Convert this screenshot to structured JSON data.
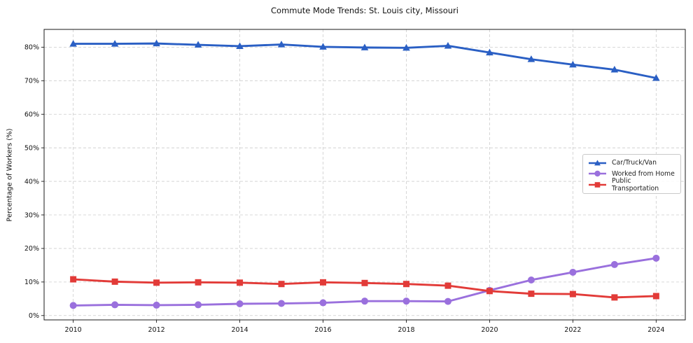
{
  "chart_data": {
    "type": "line",
    "title": "Commute Mode Trends: St. Louis city, Missouri",
    "xlabel": "",
    "ylabel": "Percentage of Workers (%)",
    "x": [
      2010,
      2011,
      2012,
      2013,
      2014,
      2015,
      2016,
      2017,
      2018,
      2019,
      2020,
      2021,
      2022,
      2023,
      2024
    ],
    "xticks": [
      2010,
      2012,
      2014,
      2016,
      2018,
      2020,
      2022,
      2024
    ],
    "yticks": [
      0,
      10,
      20,
      30,
      40,
      50,
      60,
      70,
      80
    ],
    "ytick_suffix": "%",
    "xlim": [
      2009.3,
      2024.7
    ],
    "ylim": [
      -1.3,
      85.3
    ],
    "grid": true,
    "grid_color": "#cccccc",
    "legend_position": "center-right",
    "series": [
      {
        "name": "Car/Truck/Van",
        "color": "#2a5fc4",
        "marker": "triangle",
        "values": [
          81.0,
          81.0,
          81.1,
          80.7,
          80.3,
          80.8,
          80.1,
          79.9,
          79.8,
          80.4,
          78.4,
          76.4,
          74.8,
          73.3,
          70.8
        ]
      },
      {
        "name": "Worked from Home",
        "color": "#9a70dd",
        "marker": "circle",
        "values": [
          3.0,
          3.2,
          3.1,
          3.2,
          3.5,
          3.6,
          3.8,
          4.3,
          4.3,
          4.2,
          7.5,
          10.6,
          12.9,
          15.2,
          17.1
        ]
      },
      {
        "name": "Public Transportation",
        "color": "#e23b38",
        "marker": "square",
        "values": [
          10.8,
          10.1,
          9.8,
          9.9,
          9.8,
          9.4,
          9.9,
          9.7,
          9.4,
          8.9,
          7.3,
          6.5,
          6.4,
          5.4,
          5.8
        ]
      }
    ]
  }
}
